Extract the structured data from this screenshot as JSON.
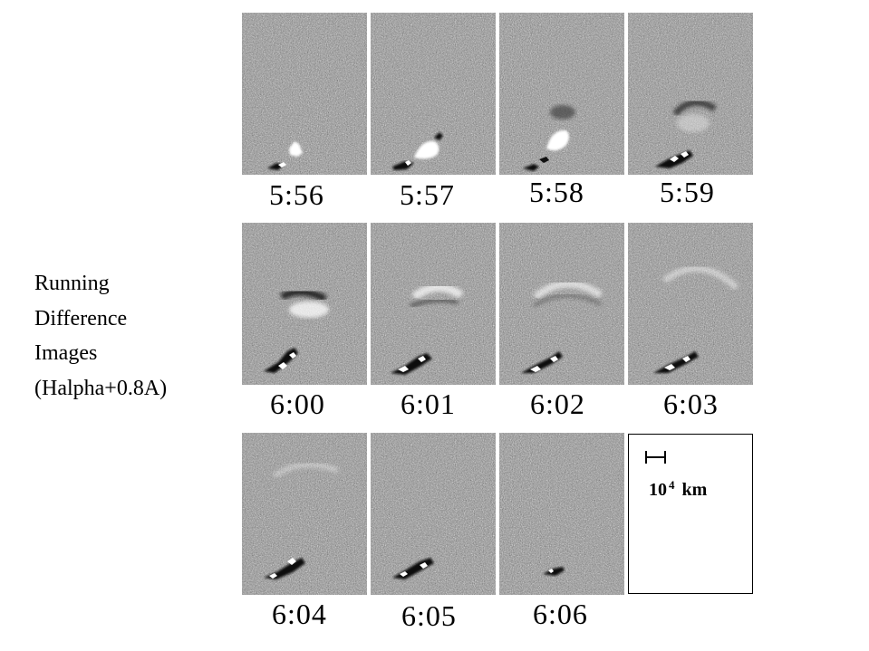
{
  "side_label": {
    "line1": "Running",
    "line2": "Difference",
    "line3": "Images",
    "line4": "(Halpha+0.8A)"
  },
  "frames": [
    {
      "time": "5:56"
    },
    {
      "time": "5:57"
    },
    {
      "time": "5:58"
    },
    {
      "time": "5:59"
    },
    {
      "time": "6:00"
    },
    {
      "time": "6:01"
    },
    {
      "time": "6:02"
    },
    {
      "time": "6:03"
    },
    {
      "time": "6:04"
    },
    {
      "time": "6:05"
    },
    {
      "time": "6:06"
    }
  ],
  "scale": {
    "base": "10",
    "exponent": "4",
    "unit": "km"
  },
  "colors": {
    "noise_gray": "#8d8d8d",
    "bright": "#ffffff",
    "dark": "#101010"
  }
}
